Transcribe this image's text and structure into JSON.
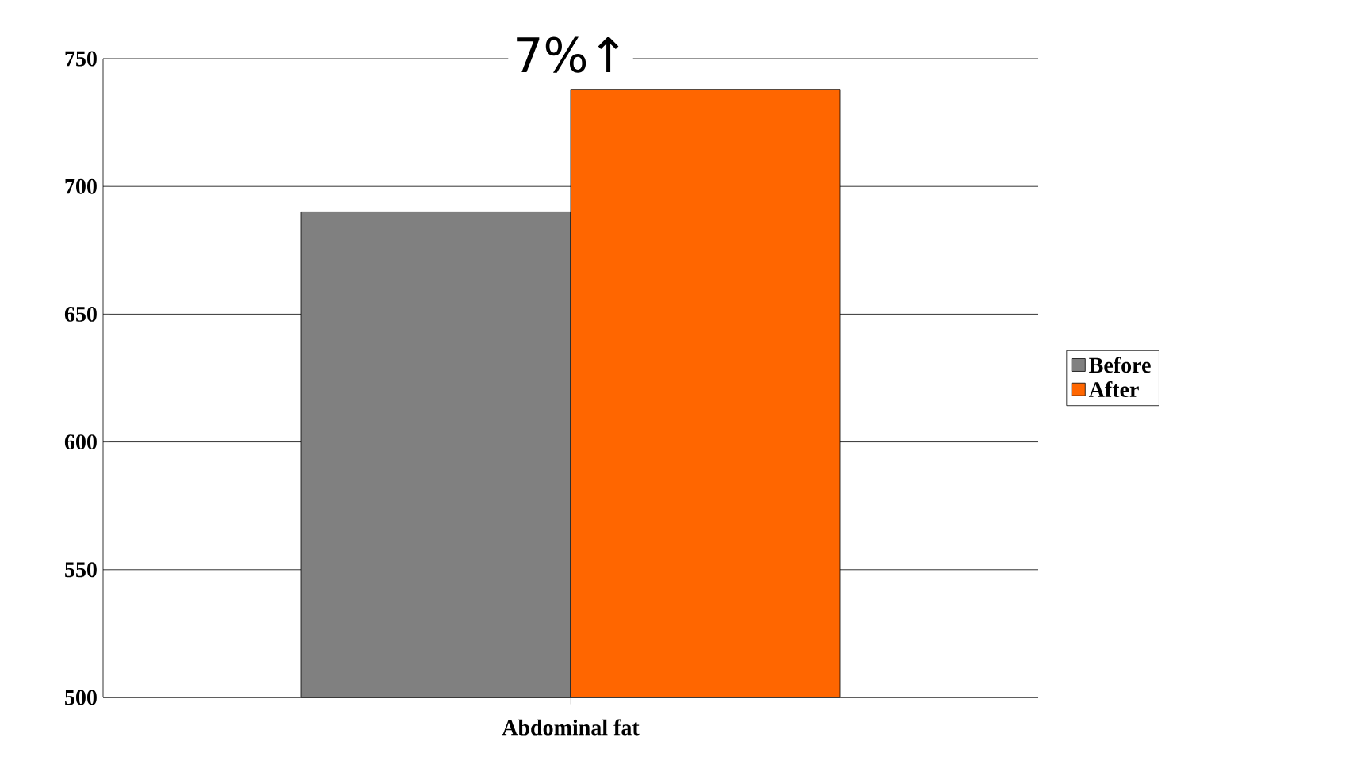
{
  "chart_data": {
    "type": "bar",
    "categories": [
      "Abdominal fat"
    ],
    "series": [
      {
        "name": "Before",
        "color": "#808080",
        "values": [
          690
        ]
      },
      {
        "name": "After",
        "color": "#ff6600",
        "values": [
          738
        ]
      }
    ],
    "ylim": [
      500,
      750
    ],
    "yticks": [
      500,
      550,
      600,
      650,
      700,
      750
    ],
    "grid": "y",
    "legend": "right",
    "annotations": [
      "7%↑"
    ]
  }
}
